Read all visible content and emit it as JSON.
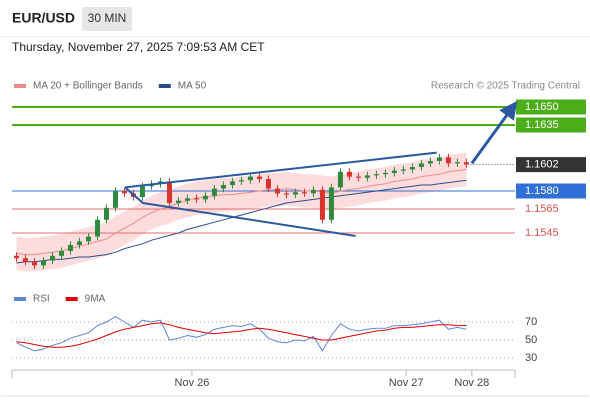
{
  "header": {
    "symbol": "EUR/USD",
    "interval": "30 MIN",
    "timestamp": "Thursday, November 27, 2025 7:09:53 AM CET"
  },
  "chart_data": [
    {
      "type": "candlestick",
      "credit": "Research © 2025 Trading Central",
      "x": [
        0,
        1,
        2,
        3,
        4,
        5,
        6,
        7,
        8,
        9,
        10,
        11,
        12,
        13,
        14,
        15,
        16,
        17,
        18,
        19,
        20,
        21,
        22,
        23,
        24,
        25,
        26,
        27,
        28,
        29,
        30,
        31,
        32,
        33,
        34,
        35,
        36,
        37,
        38,
        39,
        40,
        41,
        42,
        43,
        44,
        45,
        46,
        47,
        48,
        49,
        50
      ],
      "xlim": [
        -0.5,
        55.4
      ],
      "xticks": [
        {
          "value": 19.5,
          "label": "Nov 26"
        },
        {
          "value": 43.3,
          "label": "Nov 27"
        },
        {
          "value": 50.6,
          "label": "Nov 28"
        }
      ],
      "ylim": [
        1.151,
        1.166
      ],
      "up_color": "#2e8b3e",
      "down_color": "#d9342b",
      "open": [
        1.1526,
        1.1524,
        1.1521,
        1.1518,
        1.1522,
        1.1526,
        1.153,
        1.1535,
        1.1538,
        1.1542,
        1.1556,
        1.1566,
        1.158,
        1.1578,
        1.1575,
        1.1584,
        1.1586,
        1.1588,
        1.157,
        1.1572,
        1.1574,
        1.1573,
        1.1576,
        1.1582,
        1.1585,
        1.1588,
        1.1589,
        1.1592,
        1.159,
        1.1582,
        1.1578,
        1.1577,
        1.1579,
        1.1578,
        1.1581,
        1.1556,
        1.1583,
        1.1596,
        1.1592,
        1.1591,
        1.1593,
        1.1594,
        1.1595,
        1.1597,
        1.1598,
        1.16,
        1.1603,
        1.1605,
        1.1608,
        1.1603,
        1.1604
      ],
      "high": [
        1.1529,
        1.1527,
        1.1524,
        1.1525,
        1.1529,
        1.1533,
        1.1538,
        1.1541,
        1.1545,
        1.1559,
        1.1569,
        1.1583,
        1.1583,
        1.1581,
        1.1587,
        1.1589,
        1.1591,
        1.1591,
        1.1575,
        1.1577,
        1.1577,
        1.1579,
        1.1585,
        1.1588,
        1.1591,
        1.1592,
        1.1595,
        1.1595,
        1.1593,
        1.1585,
        1.1581,
        1.1582,
        1.1582,
        1.1584,
        1.1584,
        1.1586,
        1.1599,
        1.1599,
        1.1595,
        1.1596,
        1.1597,
        1.1598,
        1.16,
        1.1601,
        1.1603,
        1.1606,
        1.1608,
        1.1611,
        1.1611,
        1.1607,
        1.1607
      ],
      "low": [
        1.1521,
        1.1518,
        1.1515,
        1.1515,
        1.1519,
        1.1523,
        1.1527,
        1.1532,
        1.1535,
        1.1539,
        1.1553,
        1.1563,
        1.1575,
        1.1572,
        1.1572,
        1.1581,
        1.1583,
        1.1567,
        1.1567,
        1.1569,
        1.157,
        1.157,
        1.1573,
        1.1579,
        1.1582,
        1.1585,
        1.1586,
        1.1587,
        1.1579,
        1.1575,
        1.1574,
        1.1574,
        1.1575,
        1.1575,
        1.1553,
        1.1553,
        1.158,
        1.1589,
        1.1588,
        1.1588,
        1.159,
        1.1591,
        1.1592,
        1.1594,
        1.1595,
        1.1597,
        1.16,
        1.1602,
        1.16,
        1.16,
        1.1599
      ],
      "close": [
        1.1524,
        1.1521,
        1.1518,
        1.1522,
        1.1526,
        1.153,
        1.1535,
        1.1538,
        1.1542,
        1.1556,
        1.1566,
        1.158,
        1.1578,
        1.1575,
        1.1584,
        1.1586,
        1.1588,
        1.157,
        1.1572,
        1.1574,
        1.1573,
        1.1576,
        1.1582,
        1.1585,
        1.1588,
        1.1589,
        1.1592,
        1.159,
        1.1582,
        1.1578,
        1.1577,
        1.1579,
        1.1578,
        1.1581,
        1.1556,
        1.1583,
        1.1596,
        1.1592,
        1.1591,
        1.1593,
        1.1594,
        1.1595,
        1.1597,
        1.1598,
        1.16,
        1.1603,
        1.1605,
        1.1608,
        1.1603,
        1.1604,
        1.1602
      ],
      "series": [
        {
          "name": "MA 20 + Bollinger Bands",
          "color": "#f08a8a",
          "band_color": "#fbd3d3",
          "values": [
            1.1528,
            1.1527,
            1.1527,
            1.1528,
            1.1529,
            1.153,
            1.1532,
            1.1534,
            1.1536,
            1.1538,
            1.154,
            1.1545,
            1.1549,
            1.1553,
            1.1558,
            1.1562,
            1.1565,
            1.1567,
            1.157,
            1.1572,
            1.1574,
            1.1575,
            1.1576,
            1.1577,
            1.1577,
            1.1578,
            1.1579,
            1.158,
            1.1581,
            1.1581,
            1.1582,
            1.1581,
            1.158,
            1.158,
            1.1579,
            1.1578,
            1.158,
            1.1581,
            1.1582,
            1.1584,
            1.1585,
            1.1586,
            1.1588,
            1.1589,
            1.159,
            1.1592,
            1.1593,
            1.1594,
            1.1596,
            1.1597,
            1.1598
          ],
          "upper": [
            1.1542,
            1.1541,
            1.1541,
            1.1542,
            1.1543,
            1.1544,
            1.1546,
            1.1548,
            1.155,
            1.1552,
            1.1554,
            1.1559,
            1.1563,
            1.1567,
            1.1572,
            1.1576,
            1.1579,
            1.1581,
            1.1584,
            1.1586,
            1.1588,
            1.1589,
            1.159,
            1.1591,
            1.1591,
            1.1592,
            1.1593,
            1.1594,
            1.1595,
            1.1595,
            1.1596,
            1.1595,
            1.1594,
            1.1594,
            1.1593,
            1.1592,
            1.1594,
            1.1595,
            1.1596,
            1.1598,
            1.1599,
            1.16,
            1.1602,
            1.1603,
            1.1604,
            1.1606,
            1.1607,
            1.1608,
            1.161,
            1.1611,
            1.1612
          ],
          "lower": [
            1.1514,
            1.1513,
            1.1513,
            1.1514,
            1.1515,
            1.1516,
            1.1518,
            1.152,
            1.1522,
            1.1524,
            1.1526,
            1.1531,
            1.1535,
            1.1539,
            1.1544,
            1.1548,
            1.1551,
            1.1553,
            1.1556,
            1.1558,
            1.156,
            1.1561,
            1.1562,
            1.1563,
            1.1563,
            1.1564,
            1.1565,
            1.1566,
            1.1567,
            1.1567,
            1.1568,
            1.1567,
            1.1566,
            1.1566,
            1.1565,
            1.1564,
            1.1566,
            1.1567,
            1.1568,
            1.157,
            1.1571,
            1.1572,
            1.1574,
            1.1575,
            1.1576,
            1.1578,
            1.1579,
            1.158,
            1.1582,
            1.1583,
            1.1584
          ]
        },
        {
          "name": "MA 50",
          "color": "#2b4c8c",
          "values": [
            1.152,
            1.1521,
            1.1521,
            1.1522,
            1.1523,
            1.1523,
            1.1524,
            1.1525,
            1.1525,
            1.1526,
            1.1527,
            1.1529,
            1.1532,
            1.1534,
            1.1536,
            1.1539,
            1.1541,
            1.1543,
            1.1545,
            1.1548,
            1.155,
            1.1552,
            1.1554,
            1.1556,
            1.1558,
            1.156,
            1.1562,
            1.1564,
            1.1566,
            1.1568,
            1.157,
            1.1571,
            1.1572,
            1.1573,
            1.1574,
            1.1575,
            1.1576,
            1.1577,
            1.1578,
            1.1579,
            1.158,
            1.1581,
            1.1582,
            1.1583,
            1.1584,
            1.1585,
            1.1585,
            1.1586,
            1.1587,
            1.1588,
            1.1589
          ]
        }
      ],
      "levels": [
        {
          "value": 1.165,
          "label": "1.1650",
          "color": "#4caf1a",
          "style": "box"
        },
        {
          "value": 1.1635,
          "label": "1.1635",
          "color": "#4caf1a",
          "style": "box"
        },
        {
          "value": 1.1602,
          "label": "1.1602",
          "color": "#333333",
          "style": "current"
        },
        {
          "value": 1.158,
          "label": "1.1580",
          "color": "#2f6fd6",
          "style": "box"
        },
        {
          "value": 1.1565,
          "label": "1.1565",
          "color": "#e05050",
          "style": "text"
        },
        {
          "value": 1.1545,
          "label": "1.1545",
          "color": "#e05050",
          "style": "text"
        }
      ],
      "trendline_color": "#2b5aa0",
      "trendlines": [
        {
          "points": [
            [
              12.06,
              1.1583
            ],
            [
              46.7,
              1.1612
            ]
          ]
        },
        {
          "points": [
            [
              12.06,
              1.1583
            ],
            [
              14.06,
              1.157
            ],
            [
              37.7,
              1.15425
            ]
          ]
        },
        {
          "points": [
            [
              50.6,
              1.1603
            ],
            [
              55.06,
              1.1649
            ]
          ],
          "arrow": true
        }
      ]
    },
    {
      "type": "line",
      "x": [
        0,
        1,
        2,
        3,
        4,
        5,
        6,
        7,
        8,
        9,
        10,
        11,
        12,
        13,
        14,
        15,
        16,
        17,
        18,
        19,
        20,
        21,
        22,
        23,
        24,
        25,
        26,
        27,
        28,
        29,
        30,
        31,
        32,
        33,
        34,
        35,
        36,
        37,
        38,
        39,
        40,
        41,
        42,
        43,
        44,
        45,
        46,
        47,
        48,
        49,
        50
      ],
      "xlim": [
        -0.5,
        55.4
      ],
      "ylim": [
        10,
        90
      ],
      "yticks": [
        30,
        50,
        70
      ],
      "series": [
        {
          "name": "RSI",
          "color": "#5b86d9",
          "values": [
            47,
            42,
            38,
            40,
            44,
            47,
            52,
            55,
            58,
            66,
            70,
            76,
            70,
            64,
            72,
            70,
            72,
            50,
            52,
            55,
            53,
            56,
            62,
            64,
            66,
            65,
            68,
            62,
            52,
            48,
            47,
            50,
            49,
            54,
            38,
            55,
            68,
            62,
            60,
            62,
            63,
            63,
            66,
            66,
            67,
            68,
            70,
            72,
            62,
            64,
            62
          ]
        },
        {
          "name": "9MA",
          "color": "#e00000",
          "values": [
            48,
            47,
            45,
            43,
            42,
            42,
            43,
            45,
            48,
            51,
            55,
            59,
            62,
            64,
            66,
            68,
            69,
            67,
            64,
            62,
            60,
            58,
            57,
            58,
            59,
            60,
            62,
            63,
            62,
            60,
            58,
            56,
            54,
            52,
            50,
            50,
            52,
            54,
            56,
            58,
            60,
            61,
            63,
            64,
            64,
            65,
            66,
            67,
            67,
            66,
            66
          ]
        }
      ]
    }
  ]
}
